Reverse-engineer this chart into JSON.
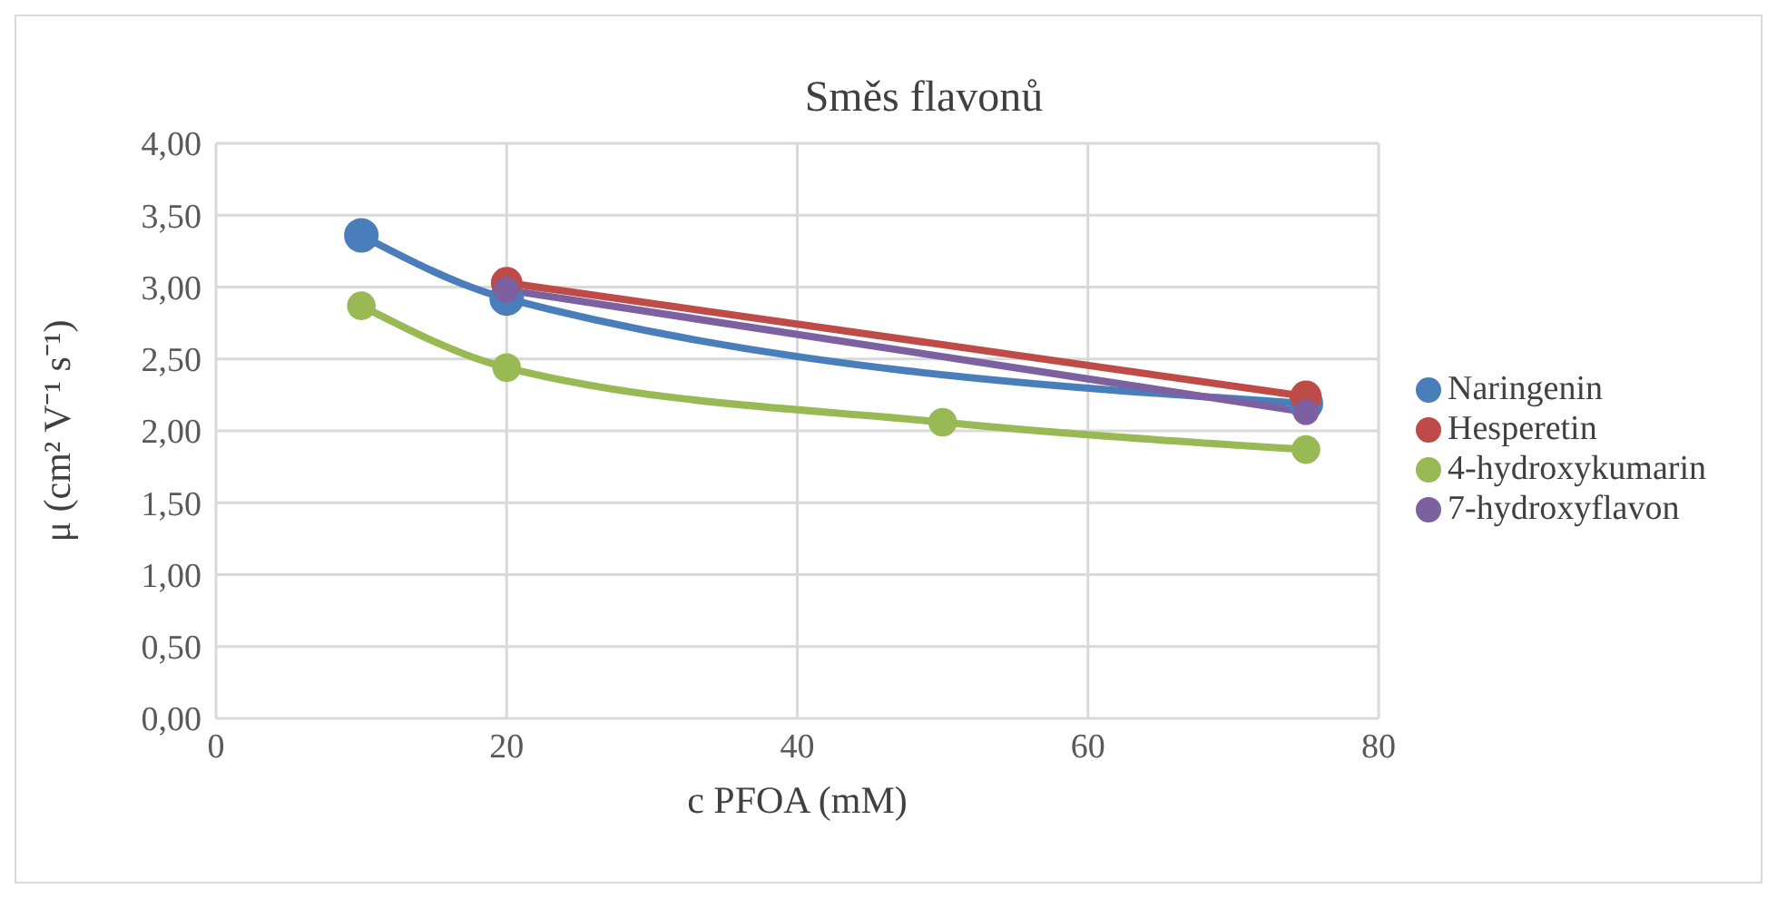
{
  "chart_data": {
    "type": "line",
    "title": "Směs flavonů",
    "xlabel": "c PFOA (mM)",
    "ylabel": "μ (cm² V⁻¹ s⁻¹)",
    "xlim": [
      0,
      80
    ],
    "xticks": [
      0,
      20,
      40,
      60,
      80
    ],
    "ylim": [
      0,
      4
    ],
    "yticks": [
      {
        "value": 0,
        "label": "0,00"
      },
      {
        "value": 0.5,
        "label": "0,50"
      },
      {
        "value": 1,
        "label": "1,00"
      },
      {
        "value": 1.5,
        "label": "1,50"
      },
      {
        "value": 2,
        "label": "2,00"
      },
      {
        "value": 2.5,
        "label": "2,50"
      },
      {
        "value": 3,
        "label": "3,00"
      },
      {
        "value": 3.5,
        "label": "3,50"
      },
      {
        "value": 4,
        "label": "4,00"
      }
    ],
    "grid": true,
    "legend": "right",
    "marker": "circle",
    "series": [
      {
        "name": "Naringenin",
        "color": "#4a7ebb",
        "x": [
          10,
          20,
          75
        ],
        "values": [
          3.36,
          2.92,
          2.19
        ]
      },
      {
        "name": "Hesperetin",
        "color": "#be4b48",
        "x": [
          20,
          75
        ],
        "values": [
          3.03,
          2.24
        ]
      },
      {
        "name": "4-hydroxykumarin",
        "color": "#98b954",
        "x": [
          10,
          20,
          50,
          75
        ],
        "values": [
          2.87,
          2.44,
          2.06,
          1.87
        ]
      },
      {
        "name": "7-hydroxyflavon",
        "color": "#7d60a0",
        "x": [
          20,
          75
        ],
        "values": [
          2.98,
          2.13
        ]
      }
    ]
  }
}
